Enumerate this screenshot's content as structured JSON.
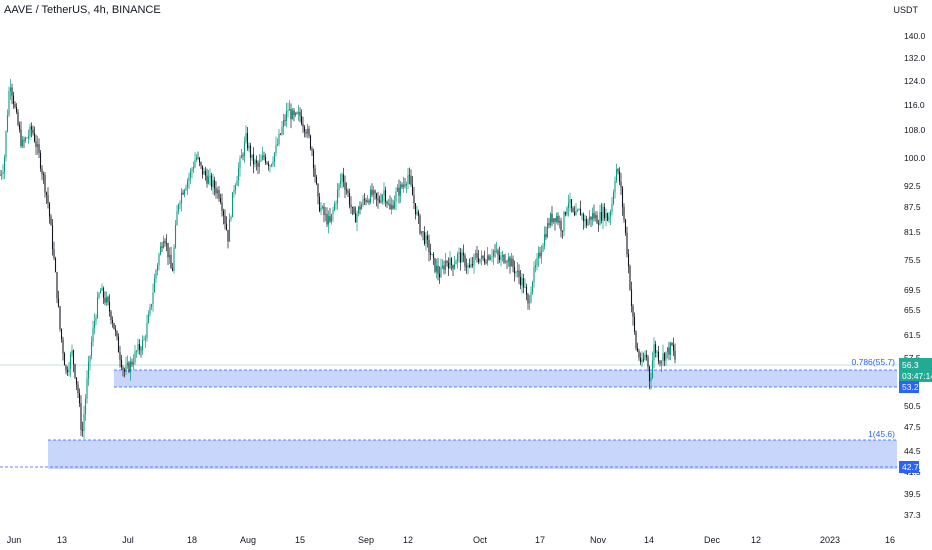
{
  "header": {
    "title": "AAVE / TetherUS, 4h, BINANCE",
    "currency": "USDT"
  },
  "colors": {
    "up": "#089981",
    "down": "#131722",
    "zone_fill": "#c9d6fb",
    "zone_line": "#2962ff",
    "tag_blue": "#2962ff",
    "tag_green": "#22ab94"
  },
  "chart_data": {
    "type": "candlestick",
    "y_scale": "log",
    "ylim": [
      36,
      156
    ],
    "y_ticks": [
      "140.0",
      "132.0",
      "124.0",
      "116.0",
      "108.0",
      "100.0",
      "92.5",
      "87.5",
      "81.5",
      "75.5",
      "69.5",
      "65.5",
      "61.5",
      "57.5",
      "50.5",
      "47.5",
      "44.5",
      "41.5",
      "39.5",
      "37.3"
    ],
    "x_ticks": [
      "Jun",
      "13",
      "Jul",
      "18",
      "Aug",
      "15",
      "Sep",
      "12",
      "Oct",
      "17",
      "Nov",
      "14",
      "Dec",
      "12",
      "2023",
      "16"
    ],
    "price_path": [
      [
        0,
        95
      ],
      [
        4,
        98
      ],
      [
        10,
        124
      ],
      [
        16,
        112
      ],
      [
        22,
        103
      ],
      [
        32,
        108
      ],
      [
        40,
        99
      ],
      [
        48,
        88
      ],
      [
        54,
        75
      ],
      [
        60,
        62
      ],
      [
        66,
        55
      ],
      [
        72,
        58
      ],
      [
        78,
        52
      ],
      [
        82,
        46
      ],
      [
        88,
        55
      ],
      [
        94,
        63
      ],
      [
        100,
        69
      ],
      [
        106,
        67
      ],
      [
        112,
        64
      ],
      [
        118,
        59
      ],
      [
        124,
        55
      ],
      [
        130,
        56
      ],
      [
        136,
        58
      ],
      [
        144,
        60
      ],
      [
        150,
        65
      ],
      [
        156,
        73
      ],
      [
        164,
        81
      ],
      [
        172,
        72
      ],
      [
        178,
        88
      ],
      [
        184,
        92
      ],
      [
        190,
        95
      ],
      [
        196,
        100
      ],
      [
        202,
        96
      ],
      [
        208,
        94
      ],
      [
        214,
        92
      ],
      [
        220,
        90
      ],
      [
        228,
        80
      ],
      [
        234,
        92
      ],
      [
        240,
        98
      ],
      [
        246,
        105
      ],
      [
        252,
        99
      ],
      [
        258,
        97
      ],
      [
        264,
        100
      ],
      [
        270,
        98
      ],
      [
        276,
        102
      ],
      [
        282,
        108
      ],
      [
        288,
        114
      ],
      [
        294,
        111
      ],
      [
        300,
        112
      ],
      [
        306,
        108
      ],
      [
        312,
        102
      ],
      [
        318,
        88
      ],
      [
        324,
        85
      ],
      [
        330,
        83
      ],
      [
        336,
        89
      ],
      [
        342,
        95
      ],
      [
        348,
        90
      ],
      [
        354,
        84
      ],
      [
        360,
        87
      ],
      [
        366,
        89
      ],
      [
        372,
        90
      ],
      [
        378,
        88
      ],
      [
        384,
        91
      ],
      [
        390,
        86
      ],
      [
        396,
        90
      ],
      [
        402,
        92
      ],
      [
        408,
        95
      ],
      [
        414,
        88
      ],
      [
        420,
        82
      ],
      [
        428,
        78
      ],
      [
        434,
        74
      ],
      [
        440,
        72
      ],
      [
        446,
        75
      ],
      [
        452,
        74
      ],
      [
        458,
        76
      ],
      [
        464,
        75
      ],
      [
        470,
        73
      ],
      [
        476,
        76
      ],
      [
        482,
        75
      ],
      [
        488,
        76
      ],
      [
        494,
        77
      ],
      [
        500,
        75
      ],
      [
        506,
        76
      ],
      [
        512,
        74
      ],
      [
        518,
        72
      ],
      [
        524,
        70
      ],
      [
        528,
        66
      ],
      [
        532,
        71
      ],
      [
        538,
        75
      ],
      [
        544,
        80
      ],
      [
        550,
        84
      ],
      [
        556,
        85
      ],
      [
        562,
        82
      ],
      [
        568,
        89
      ],
      [
        574,
        84
      ],
      [
        580,
        86
      ],
      [
        586,
        83
      ],
      [
        592,
        85
      ],
      [
        598,
        84
      ],
      [
        604,
        86
      ],
      [
        608,
        84
      ],
      [
        612,
        88
      ],
      [
        616,
        97
      ],
      [
        620,
        93
      ],
      [
        624,
        84
      ],
      [
        628,
        75
      ],
      [
        632,
        65
      ],
      [
        636,
        59
      ],
      [
        642,
        56
      ],
      [
        646,
        58
      ],
      [
        650,
        53.5
      ],
      [
        654,
        59
      ],
      [
        660,
        57
      ],
      [
        666,
        58
      ],
      [
        672,
        59
      ],
      [
        676,
        56.3
      ]
    ],
    "last_price": "56.3",
    "countdown": "03:47:14",
    "levels": [
      {
        "label": "0.786(55.7)",
        "price_tag": "53.2"
      },
      {
        "label": "1(45.6)",
        "price_tag": "42.7"
      }
    ]
  }
}
